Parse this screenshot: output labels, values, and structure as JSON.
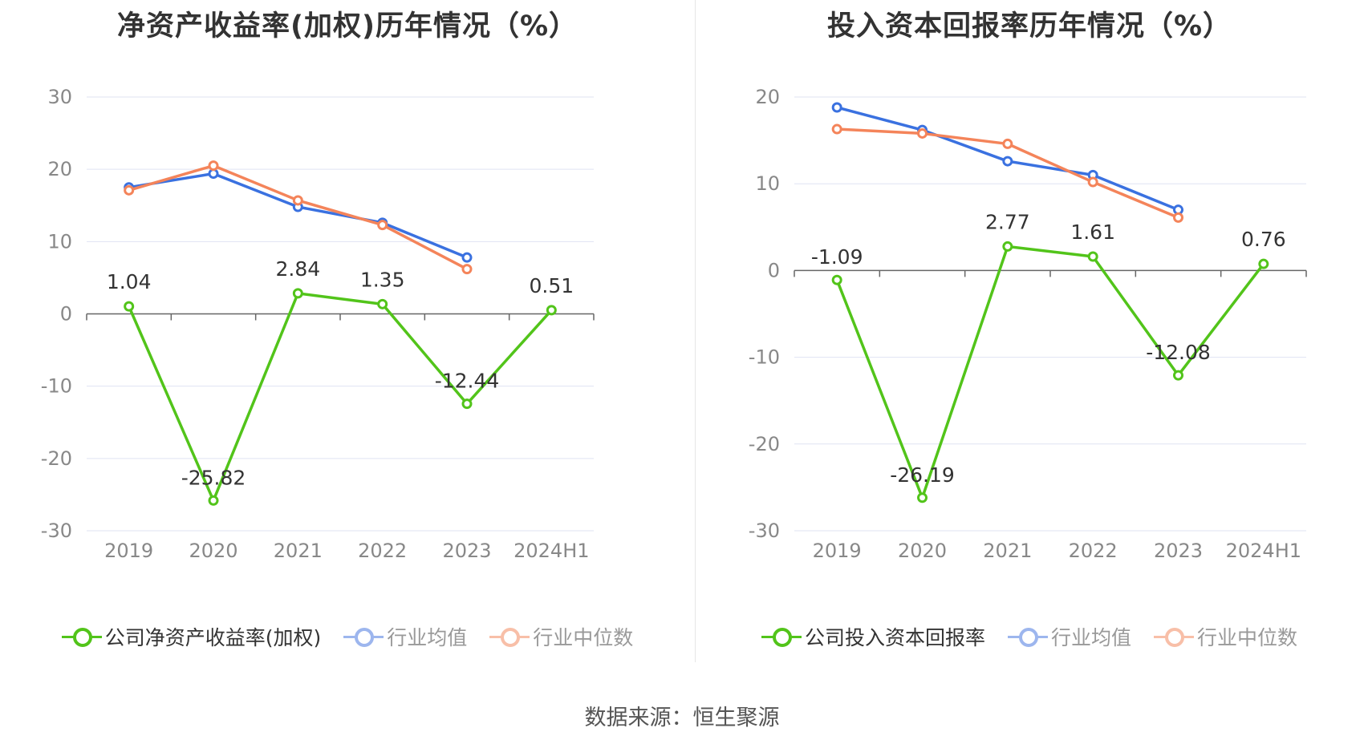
{
  "source": "数据来源：恒生聚源",
  "colors": {
    "company": "#52c41a",
    "industry_avg": "#3a71e0",
    "industry_median": "#f4845a",
    "grid": "#dfe3f2",
    "axis": "#666666",
    "tick_text": "#888888"
  },
  "charts": [
    {
      "title": "净资产收益率(加权)历年情况（%）",
      "legend": [
        {
          "label": "公司净资产收益率(加权)",
          "color": "#52c41a",
          "style": "primary"
        },
        {
          "label": "行业均值",
          "color": "#3a71e0",
          "style": "secondary"
        },
        {
          "label": "行业中位数",
          "color": "#f4845a",
          "style": "secondary"
        }
      ]
    },
    {
      "title": "投入资本回报率历年情况（%）",
      "legend": [
        {
          "label": "公司投入资本回报率",
          "color": "#52c41a",
          "style": "primary"
        },
        {
          "label": "行业均值",
          "color": "#3a71e0",
          "style": "secondary"
        },
        {
          "label": "行业中位数",
          "color": "#f4845a",
          "style": "secondary"
        }
      ]
    }
  ],
  "chart_data": [
    {
      "type": "line",
      "title": "净资产收益率(加权)历年情况（%）",
      "categories": [
        "2019",
        "2020",
        "2021",
        "2022",
        "2023",
        "2024H1"
      ],
      "ylim": [
        -30,
        30
      ],
      "yticks": [
        30,
        20,
        10,
        0,
        -10,
        -20,
        -30
      ],
      "grid": true,
      "legend_position": "bottom",
      "series": [
        {
          "name": "公司净资产收益率(加权)",
          "color": "#52c41a",
          "values": [
            1.04,
            -25.82,
            2.84,
            1.35,
            -12.44,
            0.51
          ],
          "labels": [
            "1.04",
            "-25.82",
            "2.84",
            "1.35",
            "-12.44",
            "0.51"
          ]
        },
        {
          "name": "行业均值",
          "color": "#3a71e0",
          "values": [
            17.5,
            19.4,
            14.8,
            12.6,
            7.8,
            null
          ]
        },
        {
          "name": "行业中位数",
          "color": "#f4845a",
          "values": [
            17.1,
            20.5,
            15.7,
            12.3,
            6.2,
            null
          ]
        }
      ]
    },
    {
      "type": "line",
      "title": "投入资本回报率历年情况（%）",
      "categories": [
        "2019",
        "2020",
        "2021",
        "2022",
        "2023",
        "2024H1"
      ],
      "ylim": [
        -30,
        20
      ],
      "yticks": [
        20,
        10,
        0,
        -10,
        -20,
        -30
      ],
      "grid": true,
      "legend_position": "bottom",
      "series": [
        {
          "name": "公司投入资本回报率",
          "color": "#52c41a",
          "values": [
            -1.09,
            -26.19,
            2.77,
            1.61,
            -12.08,
            0.76
          ],
          "labels": [
            "-1.09",
            "-26.19",
            "2.77",
            "1.61",
            "-12.08",
            "0.76"
          ]
        },
        {
          "name": "行业均值",
          "color": "#3a71e0",
          "values": [
            18.8,
            16.2,
            12.6,
            11.0,
            7.0,
            null
          ]
        },
        {
          "name": "行业中位数",
          "color": "#f4845a",
          "values": [
            16.3,
            15.8,
            14.6,
            10.2,
            6.1,
            null
          ]
        }
      ]
    }
  ]
}
